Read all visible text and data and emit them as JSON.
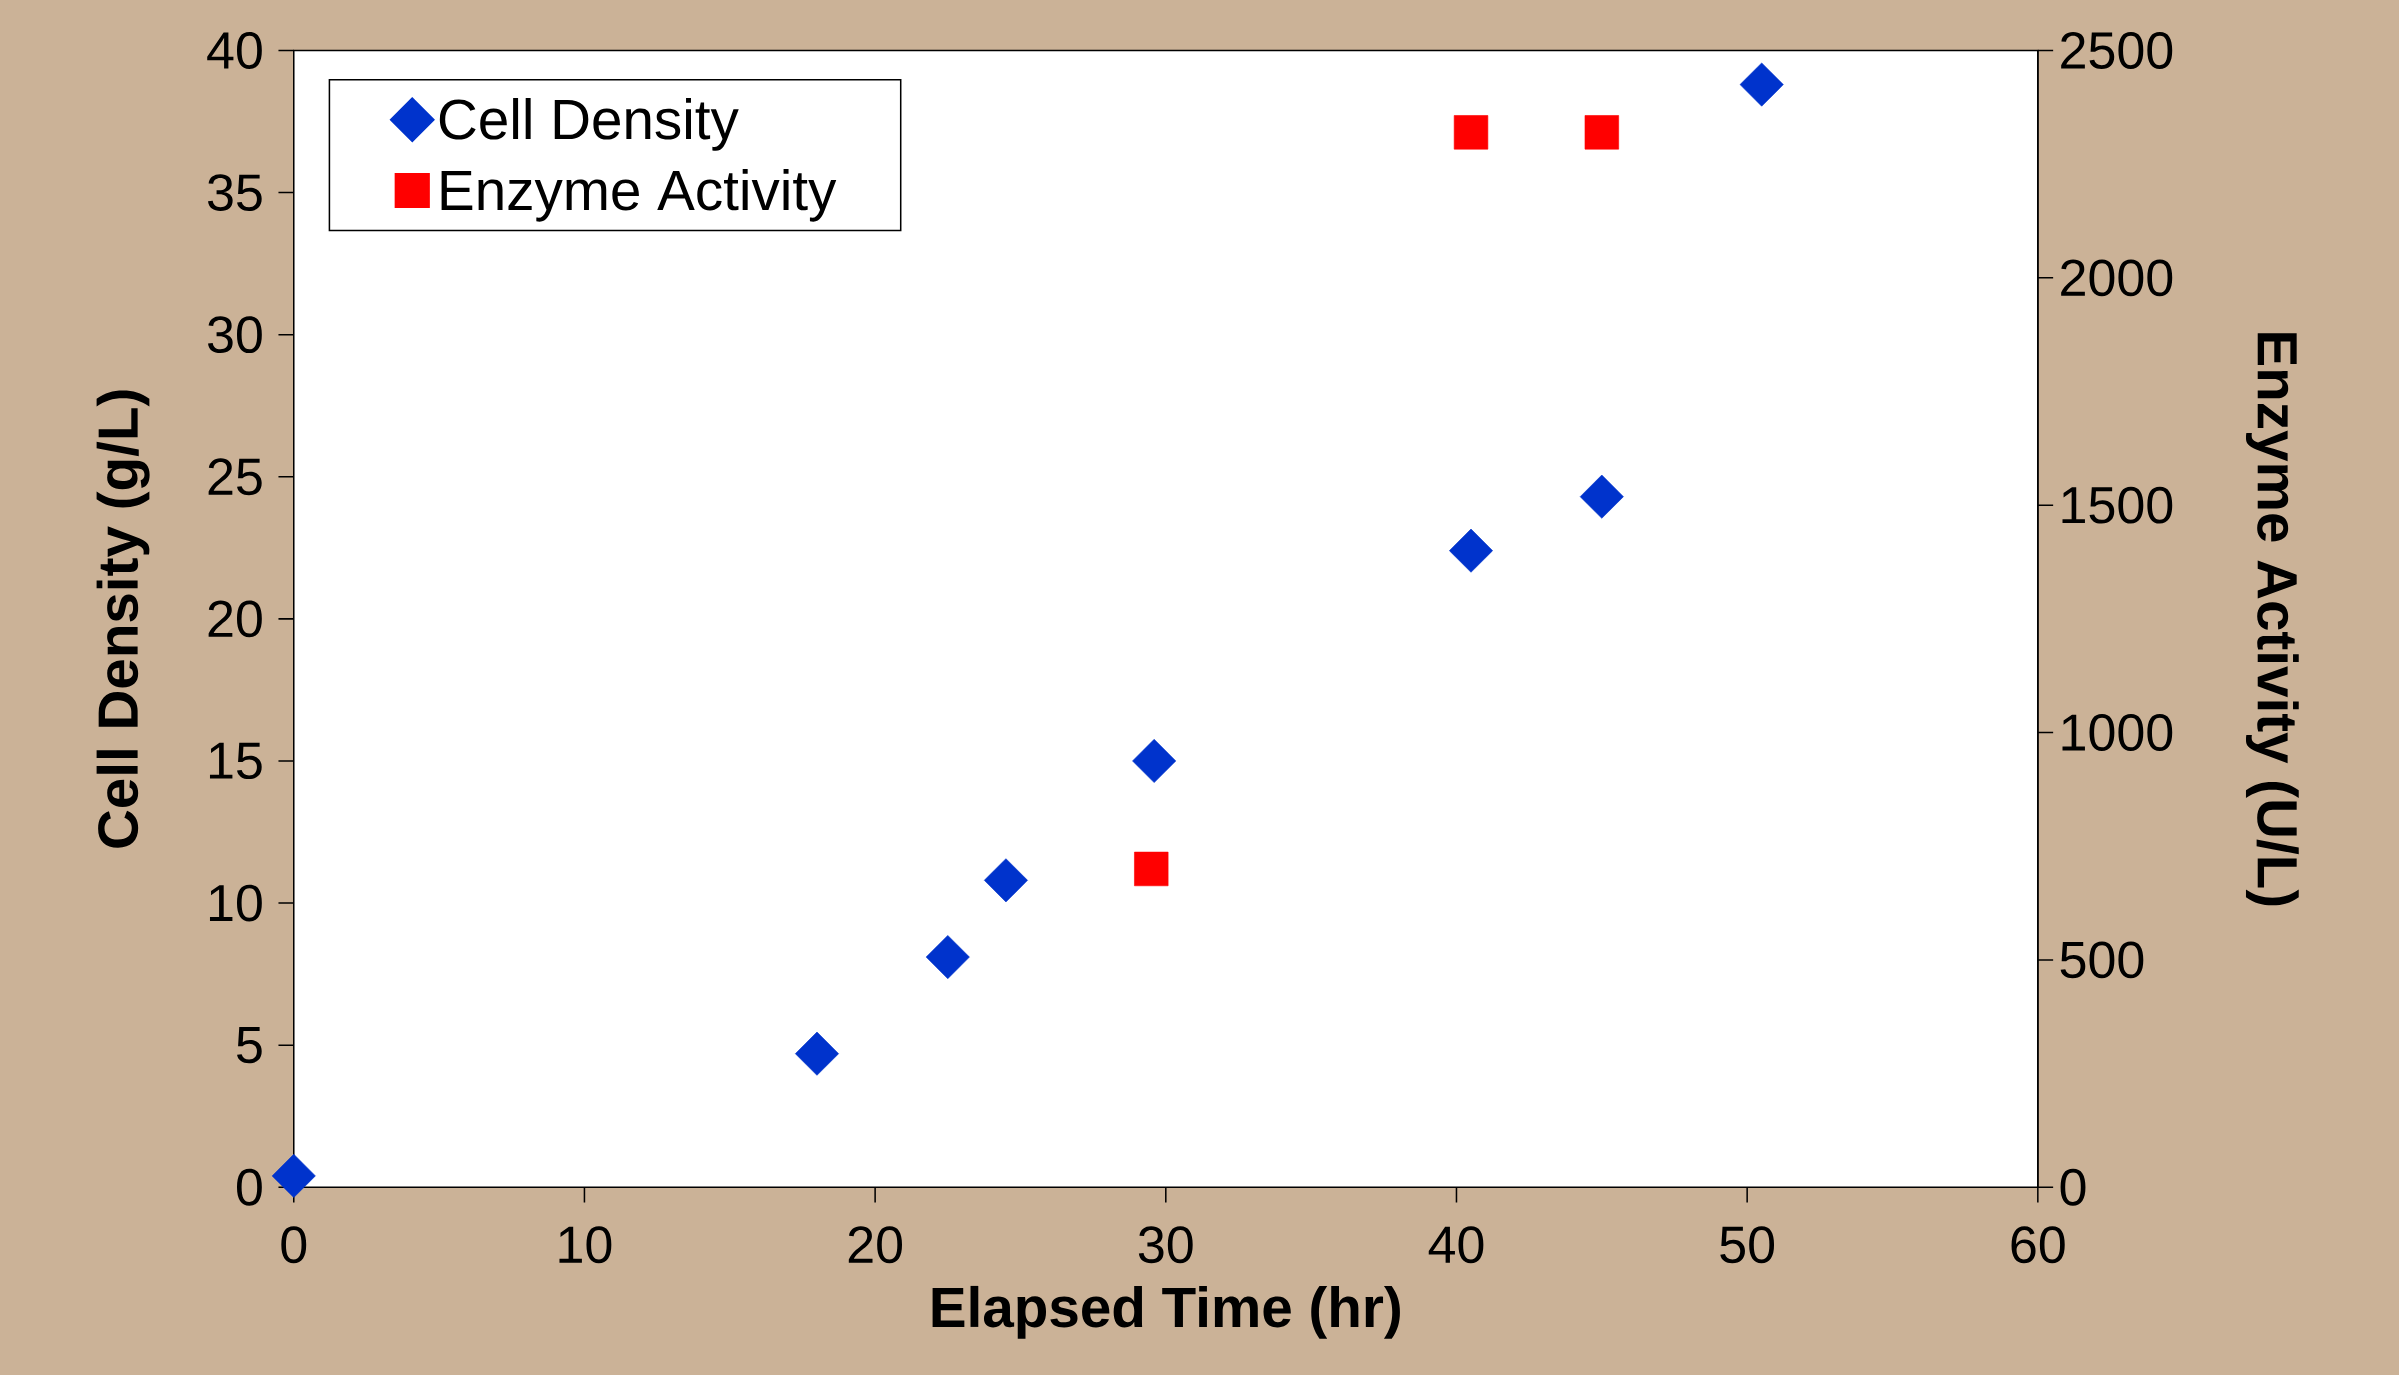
{
  "chart_data": {
    "type": "scatter",
    "xlabel": "Elapsed Time (hr)",
    "ylabel": "Cell Density (g/L)",
    "y2label": "Enzyme Activity (U/L)",
    "xlim": [
      0,
      60
    ],
    "xticks": [
      0,
      10,
      20,
      30,
      40,
      50,
      60
    ],
    "ylim": [
      0,
      40
    ],
    "yticks": [
      0,
      5,
      10,
      15,
      20,
      25,
      30,
      35,
      40
    ],
    "y2lim": [
      0,
      2500
    ],
    "y2ticks": [
      0,
      500,
      1000,
      1500,
      2000,
      2500
    ],
    "legend": "top left",
    "series": [
      {
        "name": "Cell Density",
        "color": "#0033cc",
        "marker": "diamond",
        "x": [
          0,
          18,
          22.5,
          24.5,
          29.6,
          40.5,
          45,
          50.5
        ],
        "values": [
          0.4,
          4.7,
          8.1,
          10.8,
          15.0,
          22.4,
          24.3,
          38.8
        ]
      },
      {
        "name": "Enzyme Activity",
        "color": "#ff0000",
        "marker": "square",
        "axis": "y2",
        "x": [
          29.5,
          40.5,
          45
        ],
        "values": [
          700,
          2320,
          2320
        ]
      }
    ]
  }
}
